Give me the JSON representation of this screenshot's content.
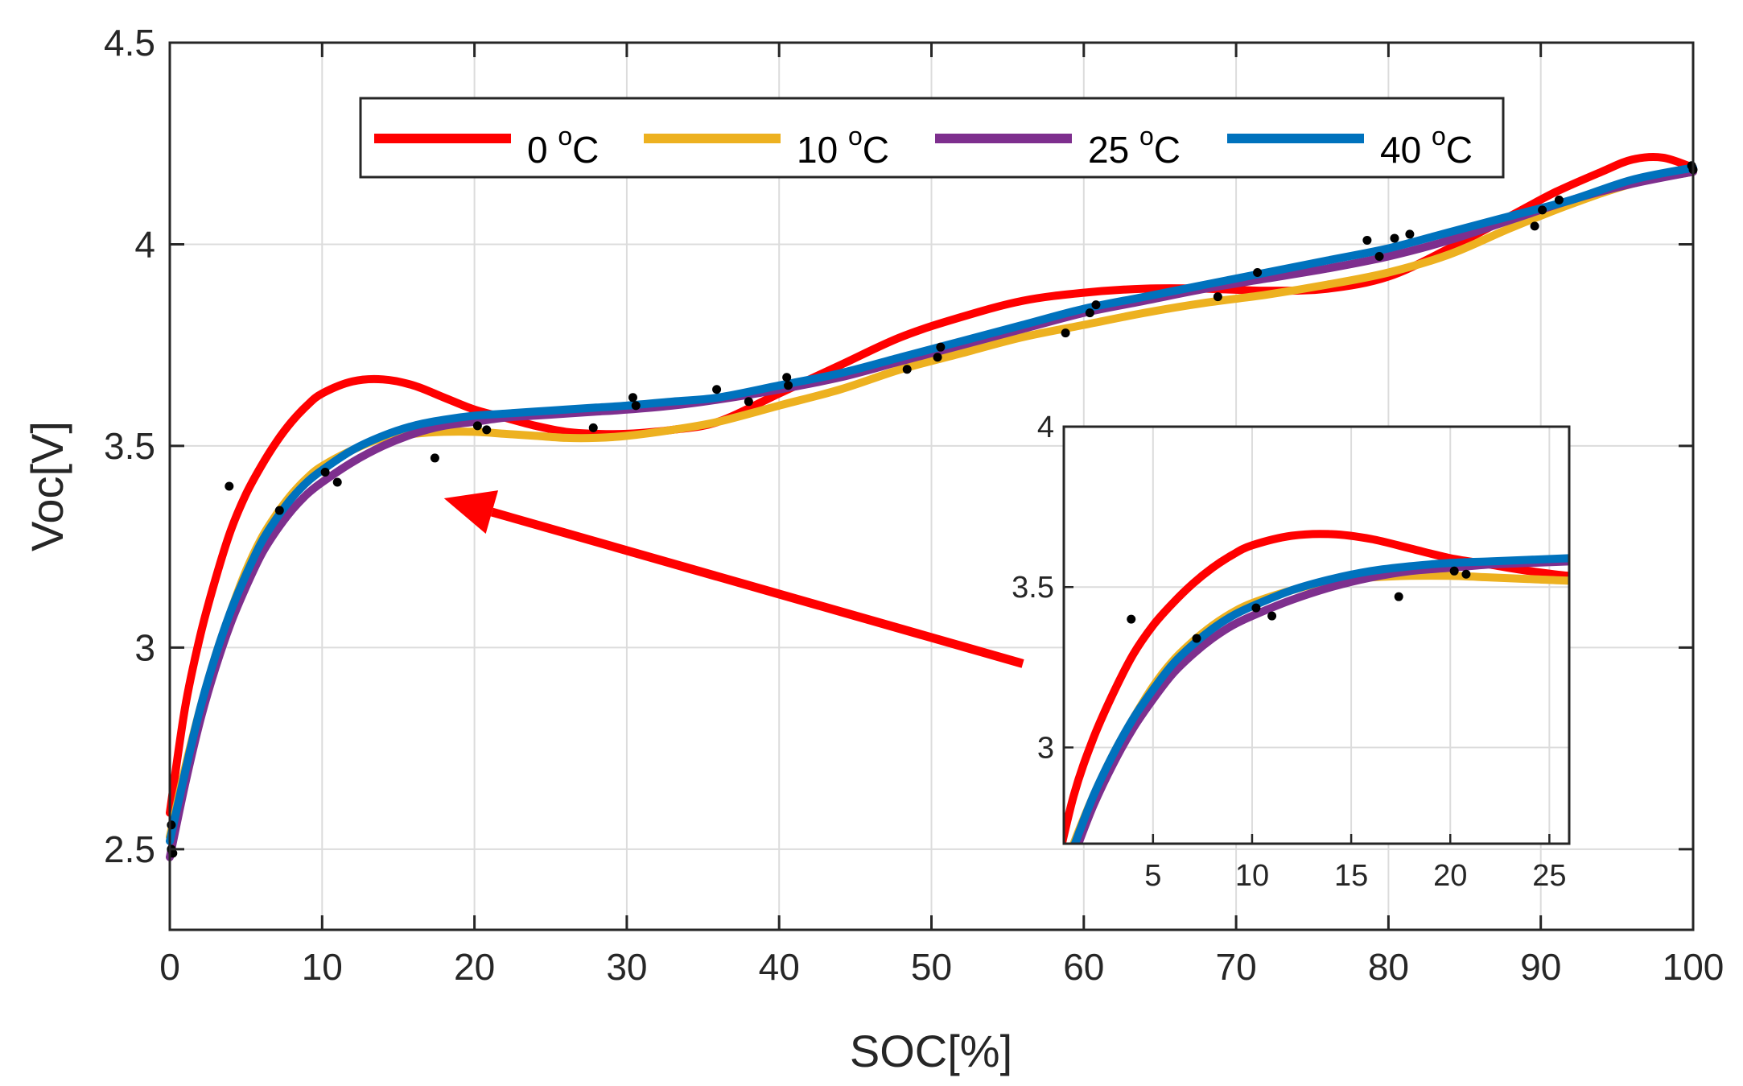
{
  "chart_data": {
    "type": "line",
    "title": "",
    "xlabel": "SOC[%]",
    "ylabel": "Voc[V]",
    "xlim": [
      0,
      100
    ],
    "ylim": [
      2.3,
      4.5
    ],
    "xticks": [
      0,
      10,
      20,
      30,
      40,
      50,
      60,
      70,
      80,
      90,
      100
    ],
    "yticks": [
      2.5,
      3,
      3.5,
      4,
      4.5
    ],
    "xtick_labels": [
      "0",
      "10",
      "20",
      "30",
      "40",
      "50",
      "60",
      "70",
      "80",
      "90",
      "100"
    ],
    "ytick_labels": [
      "2.5",
      "3",
      "3.5",
      "4",
      "4.5"
    ],
    "grid": true,
    "legend_position": "top-center",
    "series": [
      {
        "name": "0 oC",
        "label_main": "0 ",
        "label_sup": "o",
        "label_unit": "C",
        "color": "#ff0000",
        "x": [
          0,
          1,
          2,
          3,
          4,
          5,
          6,
          7,
          8,
          9,
          10,
          12,
          14,
          16,
          18,
          20,
          22,
          24,
          26,
          28,
          30,
          33,
          36,
          40,
          44,
          48,
          52,
          56,
          60,
          64,
          68,
          72,
          76,
          80,
          84,
          88,
          91,
          94,
          96,
          98,
          100
        ],
        "y": [
          2.59,
          2.85,
          3.03,
          3.17,
          3.29,
          3.38,
          3.45,
          3.51,
          3.56,
          3.6,
          3.63,
          3.66,
          3.665,
          3.65,
          3.62,
          3.59,
          3.57,
          3.55,
          3.535,
          3.53,
          3.53,
          3.54,
          3.56,
          3.63,
          3.7,
          3.77,
          3.82,
          3.86,
          3.88,
          3.89,
          3.89,
          3.885,
          3.89,
          3.92,
          3.99,
          4.07,
          4.13,
          4.18,
          4.21,
          4.215,
          4.19
        ]
      },
      {
        "name": "10 oC",
        "label_main": "10 ",
        "label_sup": "o",
        "label_unit": "C",
        "color": "#edb120",
        "x": [
          0,
          1,
          2,
          3,
          4,
          5,
          6,
          7,
          8,
          9,
          10,
          12,
          14,
          16,
          18,
          20,
          22,
          24,
          26,
          28,
          30,
          33,
          36,
          40,
          44,
          48,
          52,
          56,
          60,
          64,
          68,
          72,
          76,
          80,
          84,
          88,
          92,
          96,
          100
        ],
        "y": [
          2.53,
          2.7,
          2.85,
          2.98,
          3.09,
          3.19,
          3.27,
          3.33,
          3.38,
          3.42,
          3.45,
          3.49,
          3.52,
          3.53,
          3.535,
          3.535,
          3.53,
          3.525,
          3.52,
          3.52,
          3.525,
          3.54,
          3.56,
          3.6,
          3.64,
          3.69,
          3.73,
          3.77,
          3.8,
          3.83,
          3.855,
          3.875,
          3.9,
          3.93,
          3.975,
          4.04,
          4.1,
          4.15,
          4.18
        ]
      },
      {
        "name": "25 oC",
        "label_main": "25 ",
        "label_sup": "o",
        "label_unit": "C",
        "color": "#7e2f8e",
        "x": [
          0,
          1,
          2,
          3,
          4,
          5,
          6,
          7,
          8,
          9,
          10,
          12,
          14,
          16,
          18,
          20,
          22,
          24,
          26,
          28,
          30,
          33,
          36,
          40,
          44,
          48,
          52,
          56,
          60,
          64,
          68,
          72,
          76,
          80,
          84,
          88,
          92,
          96,
          100
        ],
        "y": [
          2.48,
          2.66,
          2.82,
          2.95,
          3.06,
          3.15,
          3.23,
          3.29,
          3.34,
          3.38,
          3.41,
          3.46,
          3.5,
          3.53,
          3.55,
          3.56,
          3.57,
          3.575,
          3.58,
          3.585,
          3.59,
          3.6,
          3.615,
          3.64,
          3.67,
          3.71,
          3.75,
          3.79,
          3.83,
          3.86,
          3.89,
          3.915,
          3.94,
          3.97,
          4.01,
          4.06,
          4.11,
          4.15,
          4.18
        ]
      },
      {
        "name": "40 oC",
        "label_main": "40 ",
        "label_sup": "o",
        "label_unit": "C",
        "color": "#0072bd",
        "x": [
          0,
          1,
          2,
          3,
          4,
          5,
          6,
          7,
          8,
          9,
          10,
          12,
          14,
          16,
          18,
          20,
          22,
          24,
          26,
          28,
          30,
          33,
          36,
          40,
          44,
          48,
          52,
          56,
          60,
          64,
          68,
          72,
          76,
          80,
          84,
          88,
          92,
          96,
          100
        ],
        "y": [
          2.52,
          2.69,
          2.85,
          2.98,
          3.09,
          3.18,
          3.26,
          3.32,
          3.37,
          3.41,
          3.44,
          3.49,
          3.525,
          3.55,
          3.565,
          3.575,
          3.58,
          3.585,
          3.59,
          3.595,
          3.6,
          3.61,
          3.62,
          3.65,
          3.68,
          3.72,
          3.76,
          3.8,
          3.84,
          3.87,
          3.9,
          3.93,
          3.96,
          3.99,
          4.03,
          4.07,
          4.11,
          4.16,
          4.19
        ]
      }
    ],
    "scatter_points": {
      "color": "#000000",
      "x": [
        0.1,
        0.1,
        0.2,
        3.9,
        7.2,
        10.2,
        11.0,
        17.4,
        20.2,
        20.8,
        27.8,
        30.4,
        30.6,
        35.9,
        38.0,
        40.5,
        40.6,
        48.4,
        50.4,
        50.6,
        58.8,
        60.4,
        60.8,
        68.8,
        71.4,
        78.6,
        79.4,
        80.4,
        81.4,
        89.6,
        90.1,
        91.2,
        99.9,
        100.0
      ],
      "y": [
        2.56,
        2.5,
        2.49,
        3.4,
        3.34,
        3.435,
        3.41,
        3.47,
        3.55,
        3.54,
        3.545,
        3.62,
        3.6,
        3.64,
        3.61,
        3.67,
        3.65,
        3.69,
        3.72,
        3.745,
        3.78,
        3.83,
        3.85,
        3.87,
        3.93,
        4.01,
        3.97,
        4.015,
        4.025,
        4.045,
        4.085,
        4.11,
        4.195,
        4.185
      ]
    },
    "inset": {
      "xlim": [
        0.5,
        26
      ],
      "ylim": [
        2.7,
        4.0
      ],
      "xticks": [
        5,
        10,
        15,
        20,
        25
      ],
      "yticks": [
        3,
        3.5,
        4
      ],
      "xtick_labels": [
        "5",
        "10",
        "15",
        "20",
        "25"
      ],
      "ytick_labels": [
        "3",
        "3.5",
        "4"
      ]
    },
    "annotation": {
      "type": "arrow",
      "color": "#ff0000",
      "from_data": [
        56,
        2.96
      ],
      "to_data": [
        18,
        3.37
      ],
      "description": "points from the inset to the zoomed region near SOC 0-25%"
    }
  }
}
